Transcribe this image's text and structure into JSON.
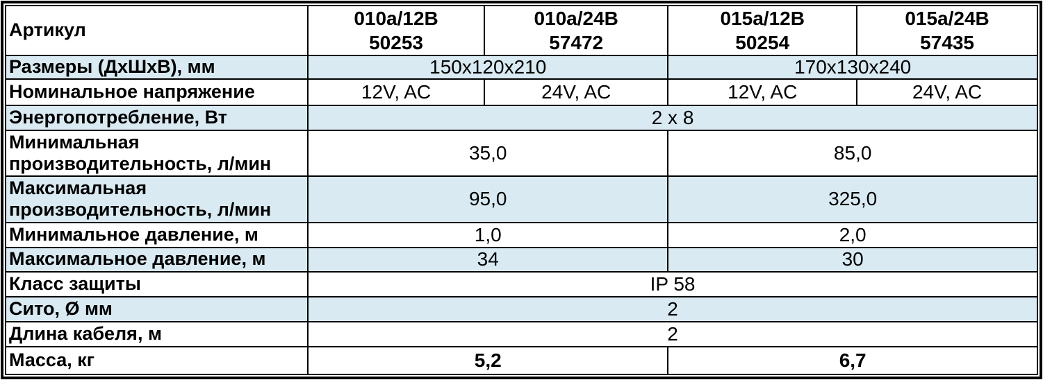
{
  "header": {
    "label": "Артикул",
    "products": [
      {
        "model": "010a/12B",
        "code": "50253"
      },
      {
        "model": "010a/24B",
        "code": "57472"
      },
      {
        "model": "015a/12B",
        "code": "50254"
      },
      {
        "model": "015a/24B",
        "code": "57435"
      }
    ]
  },
  "spec_rows": {
    "dimensions": {
      "label": "Размеры (ДхШхВ), мм",
      "v1": "150x120x210",
      "v2": "170x130x240"
    },
    "voltage": {
      "label": "Номинальное напряжение",
      "v1": "12V, AC",
      "v2": "24V, AC",
      "v3": "12V, AC",
      "v4": "24V, AC"
    },
    "power": {
      "label": "Энергопотребление, Вт",
      "v": "2 x 8"
    },
    "min_flow": {
      "label": "Минимальная производительность, л/мин",
      "v1": "35,0",
      "v2": "85,0"
    },
    "max_flow": {
      "label": "Максимальная производительность, л/мин",
      "v1": "95,0",
      "v2": "325,0"
    },
    "min_head": {
      "label": "Минимальное давление, м",
      "v1": "1,0",
      "v2": "2,0"
    },
    "max_head": {
      "label": "Максимальное давление, м",
      "v1": "34",
      "v2": "30"
    },
    "protection": {
      "label": "Класс защиты",
      "v": "IP 58"
    },
    "sieve": {
      "label": "Сито, Ø мм",
      "v": "2"
    },
    "cable": {
      "label": "Длина кабеля, м",
      "v": "2"
    },
    "weight": {
      "label": "Масса, кг",
      "v1": "5,2",
      "v2": "6,7"
    }
  },
  "colors": {
    "row_highlight": "#d9eaf2",
    "border": "#000000",
    "background": "#ffffff",
    "text": "#000000"
  }
}
